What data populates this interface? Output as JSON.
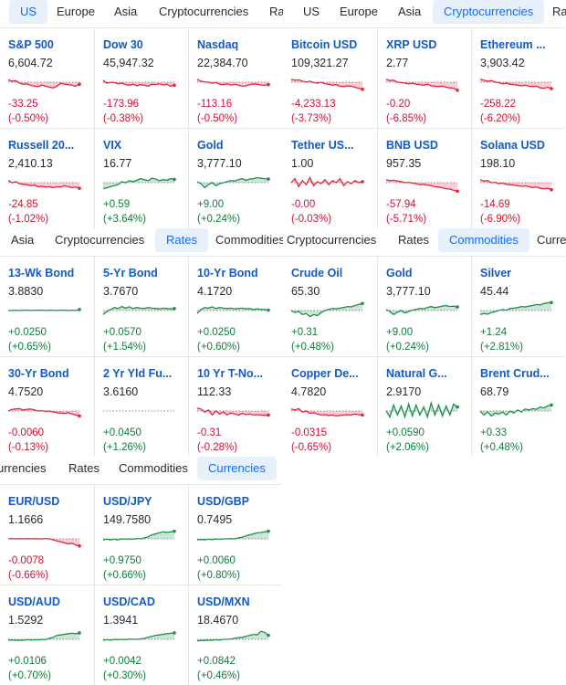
{
  "colors": {
    "up": "#1d8f4e",
    "down": "#e4253f",
    "up_text": "#127c3b",
    "down_text": "#d40f2e",
    "active_tab_bg": "#e8f1fb",
    "link": "#1559c4"
  },
  "panels": [
    {
      "id": "us",
      "tabs": [
        {
          "label": "US",
          "active": true
        },
        {
          "label": "Europe",
          "active": false
        },
        {
          "label": "Asia",
          "active": false
        },
        {
          "label": "Cryptocurrencies",
          "active": false
        },
        {
          "label": "Ra",
          "active": false
        }
      ],
      "cells": [
        {
          "symbol": "S&P 500",
          "price": "6,604.72",
          "change": "-33.25",
          "pct": "(-0.50%)",
          "dir": "down",
          "trend": [
            0.62,
            0.55,
            0.58,
            0.45,
            0.4,
            0.42,
            0.35,
            0.3,
            0.28,
            0.36,
            0.3,
            0.25,
            0.22,
            0.3,
            0.45,
            0.4,
            0.38,
            0.35,
            0.3,
            0.4
          ]
        },
        {
          "symbol": "Dow 30",
          "price": "45,947.32",
          "change": "-173.96",
          "pct": "(-0.38%)",
          "dir": "down",
          "trend": [
            0.6,
            0.45,
            0.5,
            0.48,
            0.42,
            0.45,
            0.38,
            0.35,
            0.4,
            0.32,
            0.38,
            0.35,
            0.3,
            0.4,
            0.38,
            0.42,
            0.36,
            0.4,
            0.3,
            0.35
          ]
        },
        {
          "symbol": "Nasdaq",
          "price": "22,384.70",
          "change": "-113.16",
          "pct": "(-0.50%)",
          "dir": "down",
          "trend": [
            0.65,
            0.55,
            0.52,
            0.5,
            0.45,
            0.48,
            0.4,
            0.38,
            0.42,
            0.36,
            0.4,
            0.35,
            0.3,
            0.32,
            0.38,
            0.42,
            0.4,
            0.36,
            0.35,
            0.38
          ]
        },
        {
          "symbol": "Russell 20...",
          "price": "2,410.13",
          "change": "-24.85",
          "pct": "(-1.02%)",
          "dir": "down",
          "trend": [
            0.62,
            0.5,
            0.55,
            0.45,
            0.42,
            0.4,
            0.35,
            0.38,
            0.3,
            0.32,
            0.28,
            0.3,
            0.25,
            0.3,
            0.28,
            0.35,
            0.3,
            0.25,
            0.28,
            0.22
          ]
        },
        {
          "symbol": "VIX",
          "price": "16.77",
          "change": "+0.59",
          "pct": "(+3.64%)",
          "dir": "up",
          "trend": [
            0.2,
            0.25,
            0.3,
            0.35,
            0.4,
            0.55,
            0.5,
            0.6,
            0.55,
            0.62,
            0.7,
            0.65,
            0.6,
            0.72,
            0.68,
            0.6,
            0.65,
            0.62,
            0.7,
            0.66
          ]
        },
        {
          "symbol": "Gold",
          "price": "3,777.10",
          "change": "+9.00",
          "pct": "(+0.24%)",
          "dir": "up",
          "trend": [
            0.55,
            0.45,
            0.25,
            0.4,
            0.5,
            0.35,
            0.45,
            0.5,
            0.55,
            0.6,
            0.58,
            0.65,
            0.7,
            0.62,
            0.68,
            0.7,
            0.75,
            0.72,
            0.7,
            0.68
          ]
        }
      ]
    },
    {
      "id": "crypto",
      "tabs": [
        {
          "label": "US",
          "active": false
        },
        {
          "label": "Europe",
          "active": false
        },
        {
          "label": "Asia",
          "active": false
        },
        {
          "label": "Cryptocurrencies",
          "active": true
        },
        {
          "label": "Ra",
          "active": false
        }
      ],
      "cells": [
        {
          "symbol": "Bitcoin USD",
          "price": "109,321.27",
          "change": "-4,233.13",
          "pct": "(-3.73%)",
          "dir": "down",
          "trend": [
            0.65,
            0.6,
            0.62,
            0.55,
            0.5,
            0.55,
            0.48,
            0.45,
            0.5,
            0.42,
            0.4,
            0.35,
            0.38,
            0.3,
            0.28,
            0.32,
            0.3,
            0.25,
            0.2,
            0.15
          ]
        },
        {
          "symbol": "XRP USD",
          "price": "2.77",
          "change": "-0.20",
          "pct": "(-6.85%)",
          "dir": "down",
          "trend": [
            0.65,
            0.58,
            0.6,
            0.5,
            0.48,
            0.45,
            0.42,
            0.45,
            0.4,
            0.38,
            0.35,
            0.4,
            0.32,
            0.3,
            0.28,
            0.3,
            0.25,
            0.22,
            0.2,
            0.1
          ]
        },
        {
          "symbol": "Ethereum ...",
          "price": "3,903.42",
          "change": "-258.22",
          "pct": "(-6.20%)",
          "dir": "down",
          "trend": [
            0.65,
            0.6,
            0.55,
            0.58,
            0.5,
            0.48,
            0.42,
            0.45,
            0.4,
            0.38,
            0.35,
            0.32,
            0.35,
            0.3,
            0.28,
            0.3,
            0.22,
            0.2,
            0.25,
            0.18
          ]
        },
        {
          "symbol": "Tether US...",
          "price": "1.00",
          "change": "-0.00",
          "pct": "(-0.03%)",
          "dir": "down",
          "trend": [
            0.5,
            0.7,
            0.3,
            0.6,
            0.4,
            0.75,
            0.35,
            0.55,
            0.45,
            0.65,
            0.4,
            0.6,
            0.5,
            0.7,
            0.35,
            0.55,
            0.45,
            0.6,
            0.5,
            0.55
          ]
        },
        {
          "symbol": "BNB USD",
          "price": "957.35",
          "change": "-57.94",
          "pct": "(-5.71%)",
          "dir": "down",
          "trend": [
            0.65,
            0.6,
            0.62,
            0.58,
            0.55,
            0.5,
            0.52,
            0.48,
            0.45,
            0.4,
            0.42,
            0.38,
            0.35,
            0.3,
            0.28,
            0.25,
            0.2,
            0.18,
            0.12,
            0.08
          ]
        },
        {
          "symbol": "Solana USD",
          "price": "198.10",
          "change": "-14.69",
          "pct": "(-6.90%)",
          "dir": "down",
          "trend": [
            0.65,
            0.58,
            0.6,
            0.5,
            0.52,
            0.45,
            0.48,
            0.42,
            0.4,
            0.38,
            0.35,
            0.32,
            0.34,
            0.3,
            0.26,
            0.28,
            0.22,
            0.2,
            0.22,
            0.15
          ]
        }
      ]
    },
    {
      "id": "rates",
      "tabs": [
        {
          "label": "Asia",
          "active": false
        },
        {
          "label": "Cryptocurrencies",
          "active": false
        },
        {
          "label": "Rates",
          "active": true
        },
        {
          "label": "Commodities",
          "active": false
        }
      ],
      "cells": [
        {
          "symbol": "13-Wk Bond",
          "price": "3.8830",
          "change": "+0.0250",
          "pct": "(+0.65%)",
          "dir": "up",
          "trend": [
            0.5,
            0.5,
            0.52,
            0.5,
            0.52,
            0.52,
            0.5,
            0.52,
            0.52,
            0.52,
            0.5,
            0.52,
            0.52,
            0.5,
            0.52,
            0.52,
            0.5,
            0.52,
            0.5,
            0.55
          ]
        },
        {
          "symbol": "5-Yr Bond",
          "price": "3.7670",
          "change": "+0.0570",
          "pct": "(+1.54%)",
          "dir": "up",
          "trend": [
            0.3,
            0.45,
            0.55,
            0.65,
            0.6,
            0.7,
            0.62,
            0.68,
            0.6,
            0.65,
            0.62,
            0.6,
            0.65,
            0.62,
            0.6,
            0.58,
            0.62,
            0.6,
            0.58,
            0.6
          ]
        },
        {
          "symbol": "10-Yr Bond",
          "price": "4.1720",
          "change": "+0.0250",
          "pct": "(+0.60%)",
          "dir": "up",
          "trend": [
            0.35,
            0.55,
            0.65,
            0.62,
            0.68,
            0.6,
            0.65,
            0.62,
            0.6,
            0.62,
            0.58,
            0.6,
            0.62,
            0.58,
            0.6,
            0.55,
            0.58,
            0.56,
            0.55,
            0.52
          ]
        },
        {
          "symbol": "30-Yr Bond",
          "price": "4.7520",
          "change": "-0.0060",
          "pct": "(-0.13%)",
          "dir": "down",
          "trend": [
            0.5,
            0.58,
            0.6,
            0.62,
            0.55,
            0.58,
            0.6,
            0.55,
            0.5,
            0.52,
            0.48,
            0.5,
            0.45,
            0.42,
            0.4,
            0.38,
            0.42,
            0.35,
            0.3,
            0.25
          ]
        },
        {
          "symbol": "2 Yr Yld Fu...",
          "price": "3.6160",
          "change": "+0.0450",
          "pct": "(+1.26%)",
          "dir": "up",
          "trend": [
            0.5,
            0.5,
            0.5,
            0.5,
            0.5,
            0.5,
            0.5,
            0.5,
            0.5,
            0.5,
            0.5,
            0.5,
            0.5,
            0.5,
            0.5,
            0.5,
            0.5,
            0.5,
            0.5,
            0.5
          ],
          "empty": true
        },
        {
          "symbol": "10 Yr T-No...",
          "price": "112.33",
          "change": "-0.31",
          "pct": "(-0.28%)",
          "dir": "down",
          "trend": [
            0.65,
            0.6,
            0.45,
            0.55,
            0.3,
            0.5,
            0.35,
            0.45,
            0.3,
            0.4,
            0.35,
            0.3,
            0.38,
            0.32,
            0.35,
            0.3,
            0.32,
            0.3,
            0.28,
            0.3
          ]
        }
      ]
    },
    {
      "id": "commodities",
      "tabs": [
        {
          "label": "Cryptocurrencies",
          "active": false
        },
        {
          "label": "Rates",
          "active": false
        },
        {
          "label": "Commodities",
          "active": true
        },
        {
          "label": "Curre",
          "active": false
        }
      ],
      "cells": [
        {
          "symbol": "Crude Oil",
          "price": "65.30",
          "change": "+0.31",
          "pct": "(+0.48%)",
          "dir": "up",
          "trend": [
            0.5,
            0.4,
            0.45,
            0.3,
            0.35,
            0.2,
            0.3,
            0.25,
            0.4,
            0.5,
            0.55,
            0.6,
            0.58,
            0.62,
            0.65,
            0.7,
            0.68,
            0.75,
            0.8,
            0.85
          ]
        },
        {
          "symbol": "Gold",
          "price": "3,777.10",
          "change": "+9.00",
          "pct": "(+0.24%)",
          "dir": "up",
          "trend": [
            0.55,
            0.45,
            0.3,
            0.42,
            0.5,
            0.38,
            0.45,
            0.52,
            0.56,
            0.6,
            0.58,
            0.65,
            0.7,
            0.64,
            0.68,
            0.72,
            0.75,
            0.7,
            0.72,
            0.68
          ]
        },
        {
          "symbol": "Silver",
          "price": "45.44",
          "change": "+1.24",
          "pct": "(+2.81%)",
          "dir": "up",
          "trend": [
            0.3,
            0.35,
            0.32,
            0.4,
            0.45,
            0.5,
            0.55,
            0.52,
            0.6,
            0.62,
            0.65,
            0.7,
            0.68,
            0.72,
            0.75,
            0.8,
            0.78,
            0.85,
            0.88,
            0.9
          ]
        },
        {
          "symbol": "Copper De...",
          "price": "4.7820",
          "change": "-0.0315",
          "pct": "(-0.65%)",
          "dir": "down",
          "trend": [
            0.6,
            0.55,
            0.62,
            0.45,
            0.5,
            0.38,
            0.42,
            0.35,
            0.3,
            0.32,
            0.28,
            0.3,
            0.25,
            0.28,
            0.3,
            0.32,
            0.3,
            0.35,
            0.32,
            0.3
          ]
        },
        {
          "symbol": "Natural G...",
          "price": "2.9170",
          "change": "+0.0590",
          "pct": "(+2.06%)",
          "dir": "up",
          "trend": [
            0.5,
            0.2,
            0.8,
            0.3,
            0.75,
            0.2,
            0.85,
            0.25,
            0.8,
            0.3,
            0.7,
            0.2,
            0.9,
            0.3,
            0.8,
            0.25,
            0.75,
            0.3,
            0.85,
            0.7
          ]
        },
        {
          "symbol": "Brent Crud...",
          "price": "68.79",
          "change": "+0.33",
          "pct": "(+0.48%)",
          "dir": "up",
          "trend": [
            0.5,
            0.3,
            0.45,
            0.25,
            0.4,
            0.35,
            0.45,
            0.3,
            0.5,
            0.4,
            0.55,
            0.45,
            0.6,
            0.55,
            0.62,
            0.58,
            0.7,
            0.65,
            0.75,
            0.8
          ]
        }
      ]
    },
    {
      "id": "currencies",
      "tabs": [
        {
          "label": "urrencies",
          "active": false
        },
        {
          "label": "Rates",
          "active": false
        },
        {
          "label": "Commodities",
          "active": false
        },
        {
          "label": "Currencies",
          "active": true
        }
      ],
      "cells": [
        {
          "symbol": "EUR/USD",
          "price": "1.1666",
          "change": "-0.0078",
          "pct": "(-0.66%)",
          "dir": "down",
          "trend": [
            0.5,
            0.52,
            0.5,
            0.52,
            0.5,
            0.52,
            0.5,
            0.52,
            0.5,
            0.5,
            0.52,
            0.5,
            0.45,
            0.4,
            0.35,
            0.3,
            0.25,
            0.28,
            0.2,
            0.15
          ]
        },
        {
          "symbol": "USD/JPY",
          "price": "149.7580",
          "change": "+0.9750",
          "pct": "(+0.66%)",
          "dir": "up",
          "trend": [
            0.45,
            0.48,
            0.45,
            0.48,
            0.45,
            0.5,
            0.48,
            0.5,
            0.48,
            0.52,
            0.5,
            0.55,
            0.6,
            0.7,
            0.75,
            0.8,
            0.85,
            0.82,
            0.85,
            0.88
          ]
        },
        {
          "symbol": "USD/GBP",
          "price": "0.7495",
          "change": "+0.0060",
          "pct": "(+0.80%)",
          "dir": "up",
          "trend": [
            0.45,
            0.47,
            0.45,
            0.48,
            0.46,
            0.5,
            0.48,
            0.5,
            0.5,
            0.52,
            0.5,
            0.55,
            0.58,
            0.65,
            0.7,
            0.75,
            0.8,
            0.82,
            0.85,
            0.88
          ]
        },
        {
          "symbol": "USD/AUD",
          "price": "1.5292",
          "change": "+0.0106",
          "pct": "(+0.70%)",
          "dir": "up",
          "trend": [
            0.45,
            0.47,
            0.45,
            0.46,
            0.45,
            0.48,
            0.46,
            0.48,
            0.47,
            0.5,
            0.48,
            0.55,
            0.6,
            0.7,
            0.72,
            0.75,
            0.78,
            0.8,
            0.78,
            0.82
          ]
        },
        {
          "symbol": "USD/CAD",
          "price": "1.3941",
          "change": "+0.0042",
          "pct": "(+0.30%)",
          "dir": "up",
          "trend": [
            0.45,
            0.48,
            0.46,
            0.5,
            0.48,
            0.5,
            0.48,
            0.52,
            0.5,
            0.5,
            0.52,
            0.55,
            0.6,
            0.65,
            0.7,
            0.72,
            0.75,
            0.78,
            0.8,
            0.82
          ]
        },
        {
          "symbol": "USD/MXN",
          "price": "18.4670",
          "change": "+0.0842",
          "pct": "(+0.46%)",
          "dir": "up",
          "trend": [
            0.42,
            0.45,
            0.44,
            0.46,
            0.45,
            0.48,
            0.46,
            0.5,
            0.5,
            0.52,
            0.55,
            0.58,
            0.6,
            0.65,
            0.7,
            0.75,
            0.72,
            0.9,
            0.85,
            0.7
          ]
        }
      ]
    }
  ]
}
